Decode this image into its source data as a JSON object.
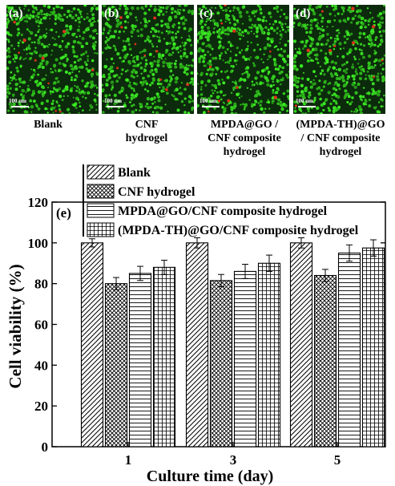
{
  "panels": [
    {
      "tag": "(a)",
      "caption": "Blank",
      "scale_label": "100 um"
    },
    {
      "tag": "(b)",
      "caption": "CNF hydrogel",
      "scale_label": "100 um"
    },
    {
      "tag": "(c)",
      "caption": "MPDA@GO / CNF composite hydrogel",
      "scale_label": "100 um"
    },
    {
      "tag": "(d)",
      "caption": "(MPDA-TH)@GO / CNF composite hydrogel",
      "scale_label": "100 um"
    }
  ],
  "captions": {
    "a": [
      "Blank"
    ],
    "b": [
      "CNF",
      "hydrogel"
    ],
    "c": [
      "MPDA@GO /",
      "CNF composite",
      "hydrogel"
    ],
    "d": [
      "(MPDA-TH)@GO",
      "/ CNF composite",
      "hydrogel"
    ]
  },
  "colors": {
    "cell_green": "#2fd11c",
    "cell_red": "#e0301c",
    "background": "#0c2a0c"
  },
  "chart_data": {
    "type": "bar",
    "panel_label": "(e)",
    "categories": [
      "1",
      "3",
      "5"
    ],
    "xlabel": "Culture time (day)",
    "ylabel": "Cell viability (%)",
    "ylim": [
      0,
      120
    ],
    "yticks": [
      0,
      20,
      40,
      60,
      80,
      100,
      120
    ],
    "legend_position": "top-left",
    "series": [
      {
        "name": "Blank",
        "pattern": "diagonal-hatch",
        "values": [
          100,
          100,
          100
        ],
        "errors": [
          2,
          2.5,
          2.5
        ]
      },
      {
        "name": "CNF hydrogel",
        "pattern": "crosshatch",
        "values": [
          80,
          81.5,
          84
        ],
        "errors": [
          3,
          3,
          3
        ]
      },
      {
        "name": "MPDA@GO/CNF composite hydrogel",
        "pattern": "horizontal-lines",
        "values": [
          85,
          86,
          95
        ],
        "errors": [
          3.5,
          3.5,
          4
        ]
      },
      {
        "name": "(MPDA-TH)@GO/CNF composite hydrogel",
        "pattern": "grid",
        "values": [
          88,
          90,
          97.5
        ],
        "errors": [
          3.5,
          4,
          4
        ]
      }
    ]
  }
}
